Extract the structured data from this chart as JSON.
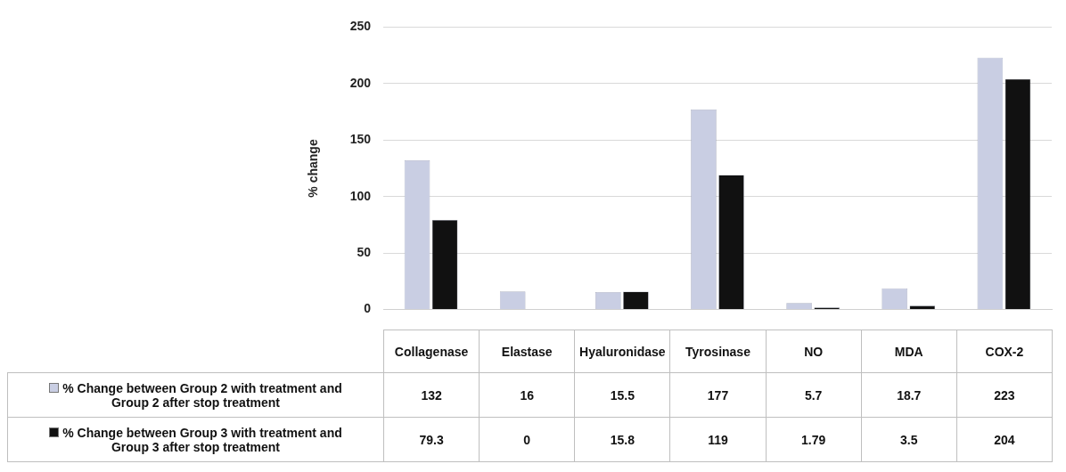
{
  "chart_data": {
    "type": "bar",
    "ylabel": "% change",
    "categories": [
      "Collagenase",
      "Elastase",
      "Hyaluronidase",
      "Tyrosinase",
      "NO",
      "MDA",
      "COX-2"
    ],
    "series": [
      {
        "name": "% Change between Group 2 with treatment and Group 2 after stop treatment",
        "color": "#c9cee3",
        "values": [
          132,
          16,
          15.5,
          177,
          5.7,
          18.7,
          223
        ]
      },
      {
        "name": "% Change between Group 3 with treatment and Group 3 after stop treatment",
        "color": "#111111",
        "values": [
          79.3,
          0,
          15.8,
          119,
          1.79,
          3.5,
          204
        ]
      }
    ],
    "ylim": [
      0,
      250
    ],
    "yticks": [
      0,
      50,
      100,
      150,
      200,
      250
    ],
    "grid": "y",
    "legend": "bottom left",
    "data_labels": true
  }
}
